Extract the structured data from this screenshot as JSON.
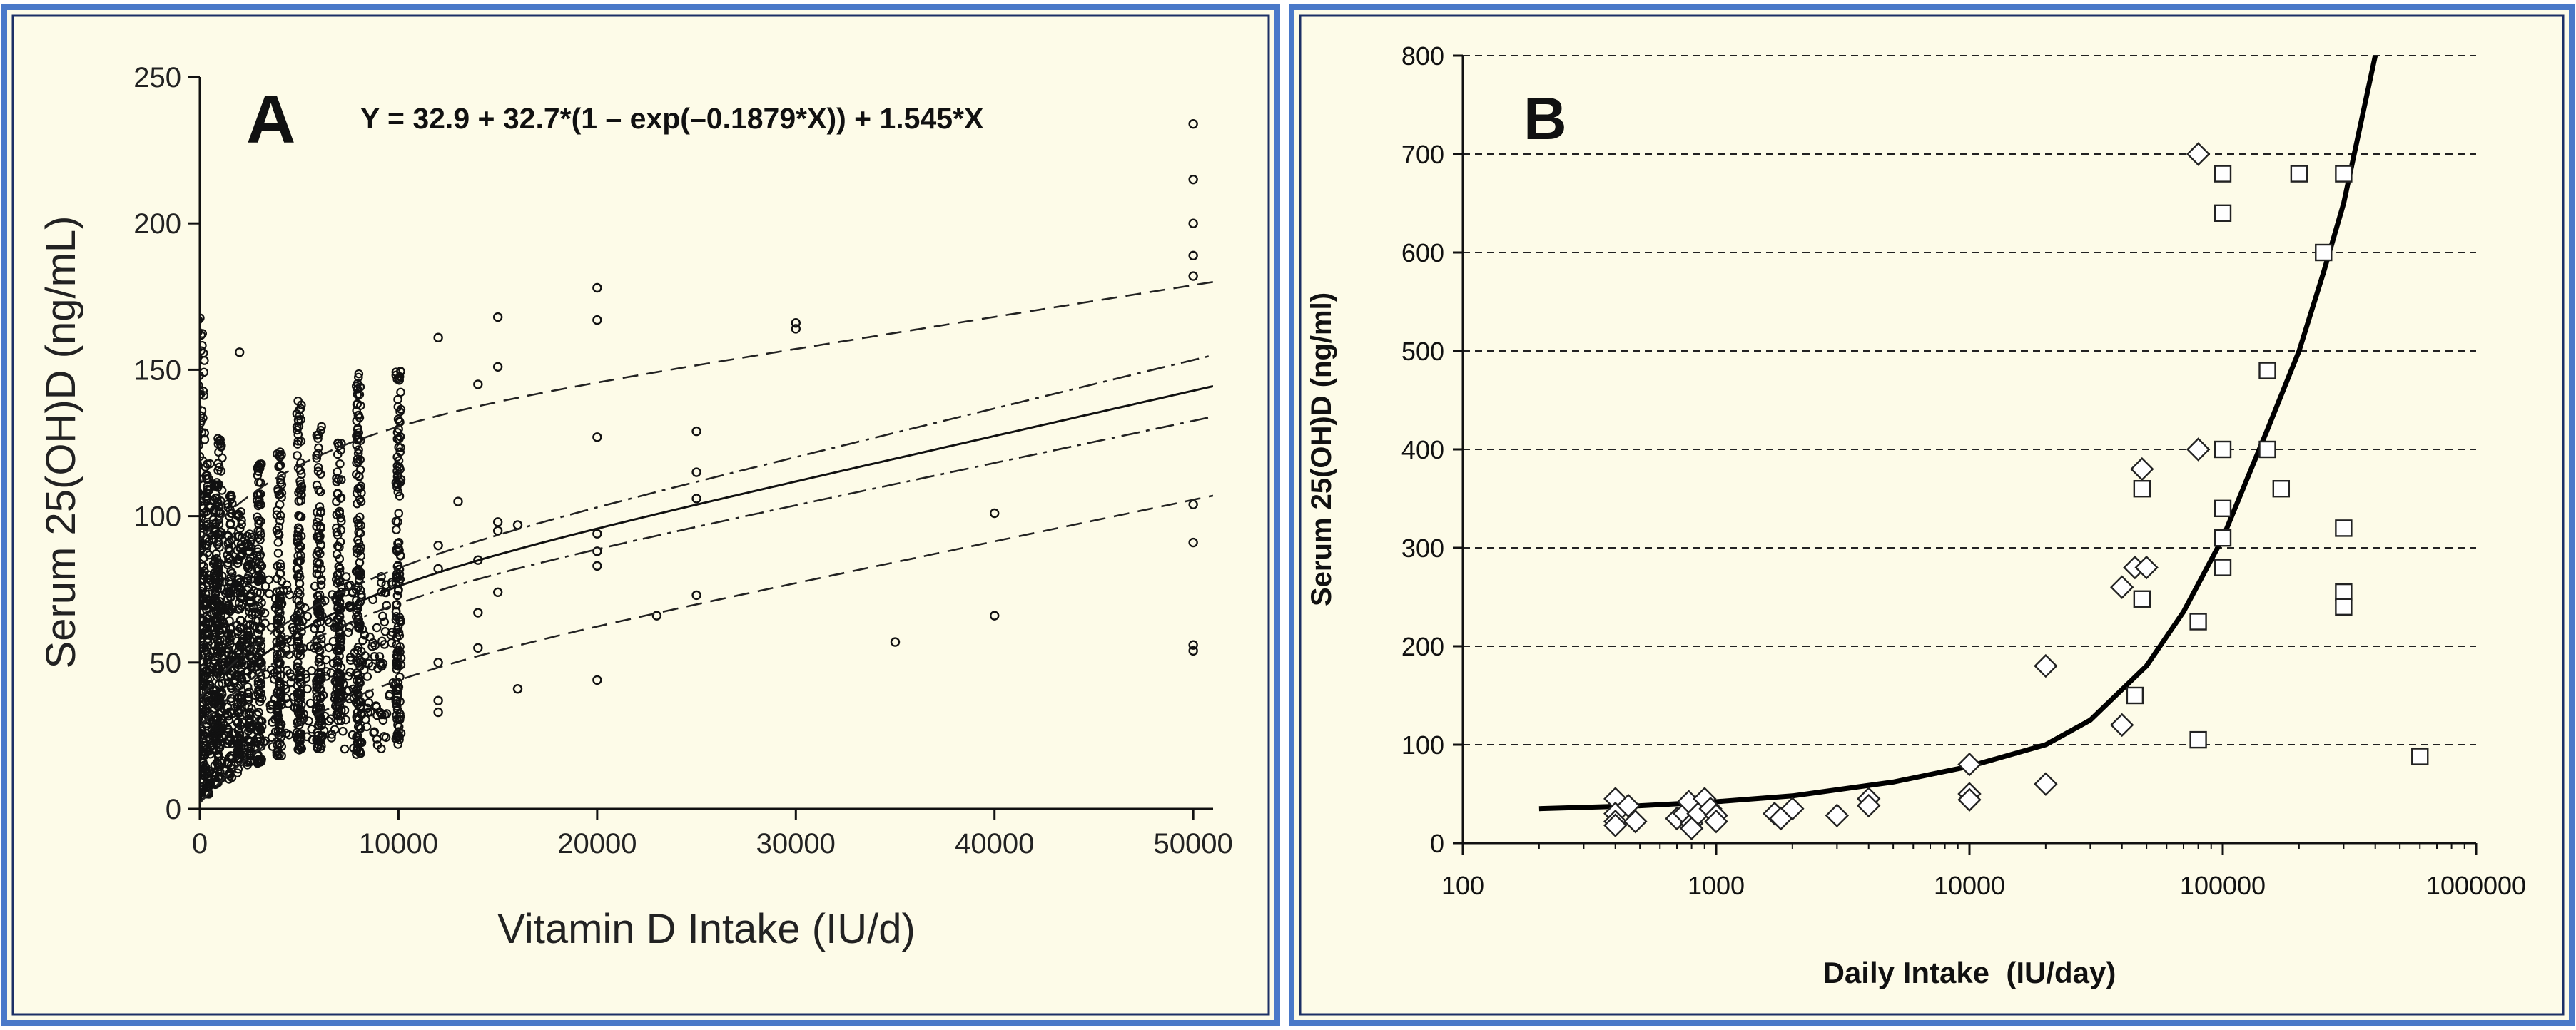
{
  "colors": {
    "frame": "#4a79c9",
    "panel_bg": "#fdfbe8",
    "ink": "#111111",
    "grid": "#222222"
  },
  "chart_data": [
    {
      "type": "scatter",
      "panel_label": "A",
      "equation": "Y = 32.9 + 32.7*(1 – exp(–0.1879*X)) + 1.545*X",
      "xlabel": "Vitamin D Intake (IU/d)",
      "ylabel": "Serum 25(OH)D (ng/mL)",
      "xlim": [
        0,
        51000
      ],
      "ylim": [
        0,
        250
      ],
      "xticks": [
        "0",
        "10000",
        "20000",
        "30000",
        "40000",
        "50000"
      ],
      "yticks": [
        "0",
        "50",
        "100",
        "150",
        "200",
        "250"
      ],
      "grid": false,
      "marker": "open-circle",
      "columns": [
        {
          "x": 0,
          "min": 3,
          "max": 168
        },
        {
          "x": 400,
          "min": 5,
          "max": 118
        },
        {
          "x": 800,
          "min": 8,
          "max": 112
        },
        {
          "x": 1000,
          "min": 10,
          "max": 127
        },
        {
          "x": 1500,
          "min": 10,
          "max": 108
        },
        {
          "x": 2000,
          "min": 12,
          "max": 105
        },
        {
          "x": 2500,
          "min": 15,
          "max": 95
        },
        {
          "x": 3000,
          "min": 15,
          "max": 118
        },
        {
          "x": 4000,
          "min": 18,
          "max": 122
        },
        {
          "x": 5000,
          "min": 20,
          "max": 141
        },
        {
          "x": 6000,
          "min": 20,
          "max": 133
        },
        {
          "x": 7000,
          "min": 30,
          "max": 125
        },
        {
          "x": 8000,
          "min": 18,
          "max": 150
        },
        {
          "x": 10000,
          "min": 22,
          "max": 150
        }
      ],
      "extra_points": [
        {
          "x": 2000,
          "y": 156
        },
        {
          "x": 12000,
          "y": 161
        },
        {
          "x": 12000,
          "y": 90
        },
        {
          "x": 12000,
          "y": 82
        },
        {
          "x": 12000,
          "y": 50
        },
        {
          "x": 12000,
          "y": 37
        },
        {
          "x": 12000,
          "y": 33
        },
        {
          "x": 13000,
          "y": 105
        },
        {
          "x": 14000,
          "y": 145
        },
        {
          "x": 14000,
          "y": 85
        },
        {
          "x": 14000,
          "y": 67
        },
        {
          "x": 14000,
          "y": 55
        },
        {
          "x": 15000,
          "y": 168
        },
        {
          "x": 15000,
          "y": 151
        },
        {
          "x": 15000,
          "y": 98
        },
        {
          "x": 15000,
          "y": 95
        },
        {
          "x": 15000,
          "y": 74
        },
        {
          "x": 16000,
          "y": 97
        },
        {
          "x": 16000,
          "y": 41
        },
        {
          "x": 20000,
          "y": 178
        },
        {
          "x": 20000,
          "y": 167
        },
        {
          "x": 20000,
          "y": 127
        },
        {
          "x": 20000,
          "y": 94
        },
        {
          "x": 20000,
          "y": 88
        },
        {
          "x": 20000,
          "y": 83
        },
        {
          "x": 20000,
          "y": 44
        },
        {
          "x": 23000,
          "y": 66
        },
        {
          "x": 25000,
          "y": 129
        },
        {
          "x": 25000,
          "y": 115
        },
        {
          "x": 25000,
          "y": 106
        },
        {
          "x": 25000,
          "y": 73
        },
        {
          "x": 30000,
          "y": 166
        },
        {
          "x": 30000,
          "y": 164
        },
        {
          "x": 35000,
          "y": 57
        },
        {
          "x": 40000,
          "y": 101
        },
        {
          "x": 40000,
          "y": 66
        },
        {
          "x": 50000,
          "y": 234
        },
        {
          "x": 50000,
          "y": 215
        },
        {
          "x": 50000,
          "y": 200
        },
        {
          "x": 50000,
          "y": 189
        },
        {
          "x": 50000,
          "y": 182
        },
        {
          "x": 50000,
          "y": 104
        },
        {
          "x": 50000,
          "y": 91
        },
        {
          "x": 50000,
          "y": 56
        },
        {
          "x": 50000,
          "y": 54
        }
      ],
      "fit": {
        "a": 32.9,
        "b": 32.7,
        "k": 0.1879,
        "c": 1.545,
        "x_unit": 1000
      },
      "bands": [
        {
          "name": "upper prediction",
          "style": "dashed",
          "y0": 92,
          "y1": 180
        },
        {
          "name": "lower prediction",
          "style": "dashed",
          "y0": 2,
          "y1": 107
        },
        {
          "name": "upper confidence",
          "style": "dash-dot",
          "y0": 38,
          "y1": 155
        },
        {
          "name": "lower confidence",
          "style": "dash-dot",
          "y0": 28,
          "y1": 134
        }
      ]
    },
    {
      "type": "scatter",
      "panel_label": "B",
      "xlabel": "Daily Intake  (IU/day)",
      "ylabel": "Serum 25(OH)D   (ng/ml)",
      "xscale": "log",
      "xlim": [
        100,
        1000000
      ],
      "ylim": [
        0,
        800
      ],
      "xticks": [
        "100",
        "1000",
        "10000",
        "100000",
        "1000000"
      ],
      "yticks": [
        "0",
        "100",
        "200",
        "300",
        "400",
        "500",
        "600",
        "700",
        "800"
      ],
      "grid": "horizontal-dashed",
      "series": [
        {
          "name": "diamonds",
          "marker": "open-diamond",
          "points": [
            [
              400,
              45
            ],
            [
              400,
              30
            ],
            [
              400,
              22
            ],
            [
              400,
              18
            ],
            [
              450,
              38
            ],
            [
              480,
              22
            ],
            [
              700,
              25
            ],
            [
              750,
              30
            ],
            [
              780,
              42
            ],
            [
              800,
              20
            ],
            [
              800,
              15
            ],
            [
              850,
              30
            ],
            [
              900,
              45
            ],
            [
              950,
              35
            ],
            [
              1000,
              28
            ],
            [
              1000,
              22
            ],
            [
              1700,
              30
            ],
            [
              1800,
              25
            ],
            [
              2000,
              35
            ],
            [
              3000,
              28
            ],
            [
              4000,
              45
            ],
            [
              4000,
              38
            ],
            [
              10000,
              80
            ],
            [
              10000,
              50
            ],
            [
              10000,
              44
            ],
            [
              20000,
              180
            ],
            [
              20000,
              60
            ],
            [
              40000,
              260
            ],
            [
              40000,
              120
            ],
            [
              45000,
              280
            ],
            [
              48000,
              380
            ],
            [
              50000,
              280
            ],
            [
              80000,
              700
            ],
            [
              80000,
              400
            ]
          ]
        },
        {
          "name": "squares",
          "marker": "open-square",
          "points": [
            [
              45000,
              150
            ],
            [
              48000,
              360
            ],
            [
              48000,
              248
            ],
            [
              80000,
              225
            ],
            [
              80000,
              105
            ],
            [
              100000,
              680
            ],
            [
              100000,
              640
            ],
            [
              100000,
              400
            ],
            [
              100000,
              340
            ],
            [
              100000,
              310
            ],
            [
              100000,
              280
            ],
            [
              150000,
              480
            ],
            [
              150000,
              400
            ],
            [
              170000,
              360
            ],
            [
              200000,
              680
            ],
            [
              250000,
              600
            ],
            [
              300000,
              680
            ],
            [
              300000,
              320
            ],
            [
              300000,
              255
            ],
            [
              300000,
              240
            ],
            [
              600000,
              88
            ]
          ]
        }
      ],
      "curve": {
        "name": "fitted curve",
        "points": [
          [
            200,
            35
          ],
          [
            500,
            38
          ],
          [
            1000,
            42
          ],
          [
            2000,
            48
          ],
          [
            5000,
            62
          ],
          [
            10000,
            78
          ],
          [
            20000,
            100
          ],
          [
            30000,
            125
          ],
          [
            50000,
            180
          ],
          [
            70000,
            235
          ],
          [
            100000,
            310
          ],
          [
            150000,
            420
          ],
          [
            200000,
            500
          ],
          [
            250000,
            580
          ],
          [
            300000,
            650
          ],
          [
            400000,
            800
          ]
        ]
      }
    }
  ]
}
